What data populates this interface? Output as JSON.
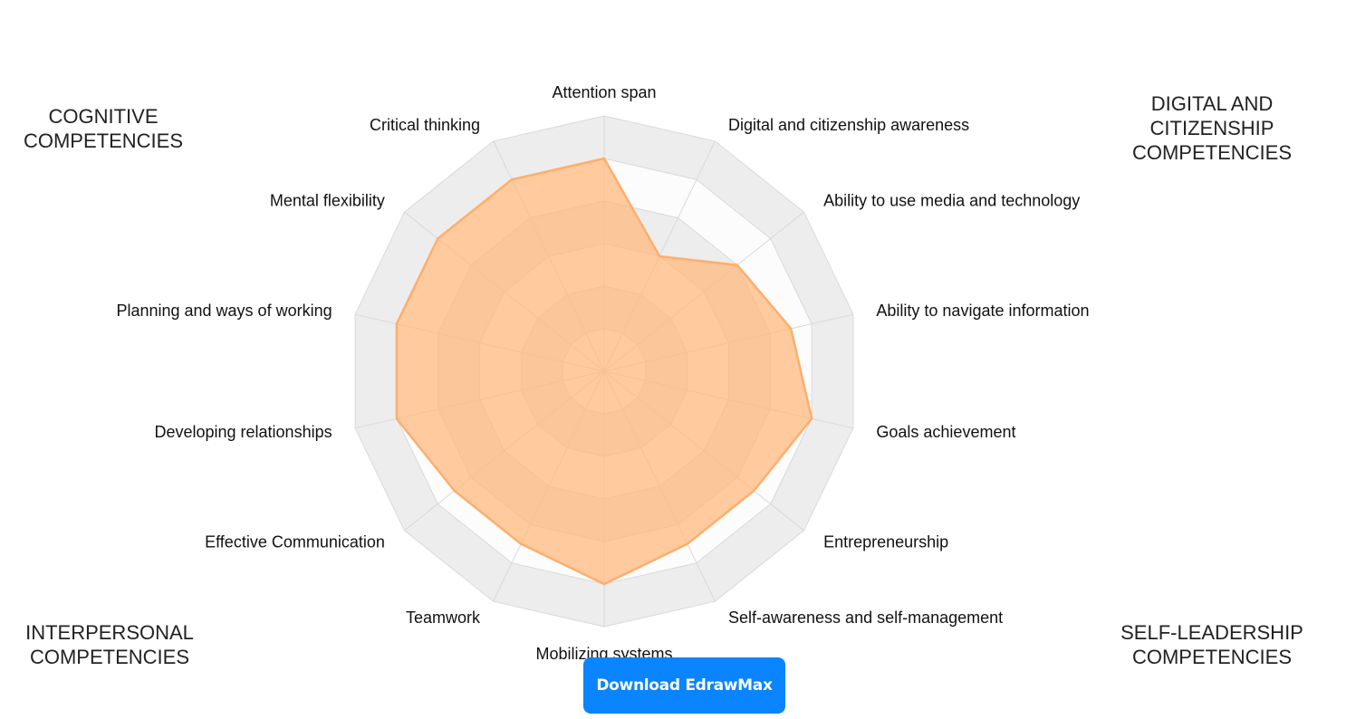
{
  "corner_labels": {
    "top_left": "COGNITIVE\nCOMPETENCIES",
    "top_right": "DIGITAL AND\nCITIZENSHIP\nCOMPETENCIES",
    "bottom_left": "INTERPERSONAL\nCOMPETENCIES",
    "bottom_right": "SELF-LEADERSHIP\nCOMPETENCIES"
  },
  "download_button": {
    "label": "Download EdrawMax"
  },
  "chart_data": {
    "type": "radar",
    "categories": [
      "Attention span",
      "Digital and citizenship awareness",
      "Ability to use media and technology",
      "Ability to navigate information",
      "Goals achievement",
      "Entrepreneurship",
      "Self-awareness and self-management",
      "Mobilizing systems",
      "Teamwork",
      "Effective Communication",
      "Developing relationships",
      "Planning and ways of working",
      "Mental flexibility",
      "Critical thinking"
    ],
    "values": [
      5,
      3,
      4,
      4.5,
      5,
      4.5,
      4.5,
      5,
      4.5,
      4.5,
      5,
      5,
      5,
      5
    ],
    "rlim": [
      0,
      6
    ],
    "rings": 6,
    "colors": {
      "fill": "#ffb77a",
      "stroke": "#ffae6c",
      "band_dark": "#ededed",
      "band_light": "#fcfcfc",
      "grid": "#d9d9d9"
    }
  }
}
